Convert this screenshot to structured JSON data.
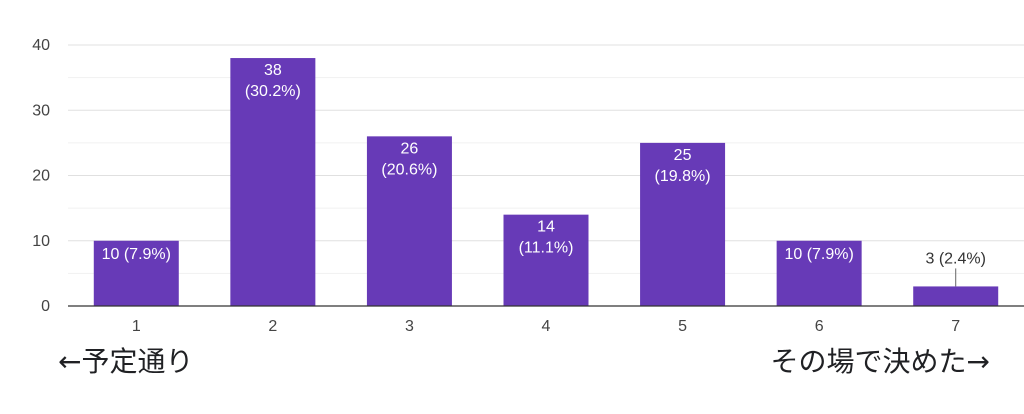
{
  "chart_data": {
    "type": "bar",
    "categories": [
      "1",
      "2",
      "3",
      "4",
      "5",
      "6",
      "7"
    ],
    "values": [
      10,
      38,
      26,
      14,
      25,
      10,
      3
    ],
    "data_labels": [
      "10 (7.9%)",
      "38 (30.2%)",
      "26 (20.6%)",
      "14 (11.1%)",
      "25 (19.8%)",
      "10 (7.9%)",
      "3 (2.4%)"
    ],
    "y_ticks": [
      0,
      10,
      20,
      30,
      40
    ],
    "ylim": [
      0,
      40
    ],
    "grid": true,
    "bar_color": "#673AB7",
    "title": "",
    "xlabel": "",
    "ylabel": ""
  },
  "scale_labels": {
    "left": "←予定通り",
    "right": "その場で決めた→"
  }
}
